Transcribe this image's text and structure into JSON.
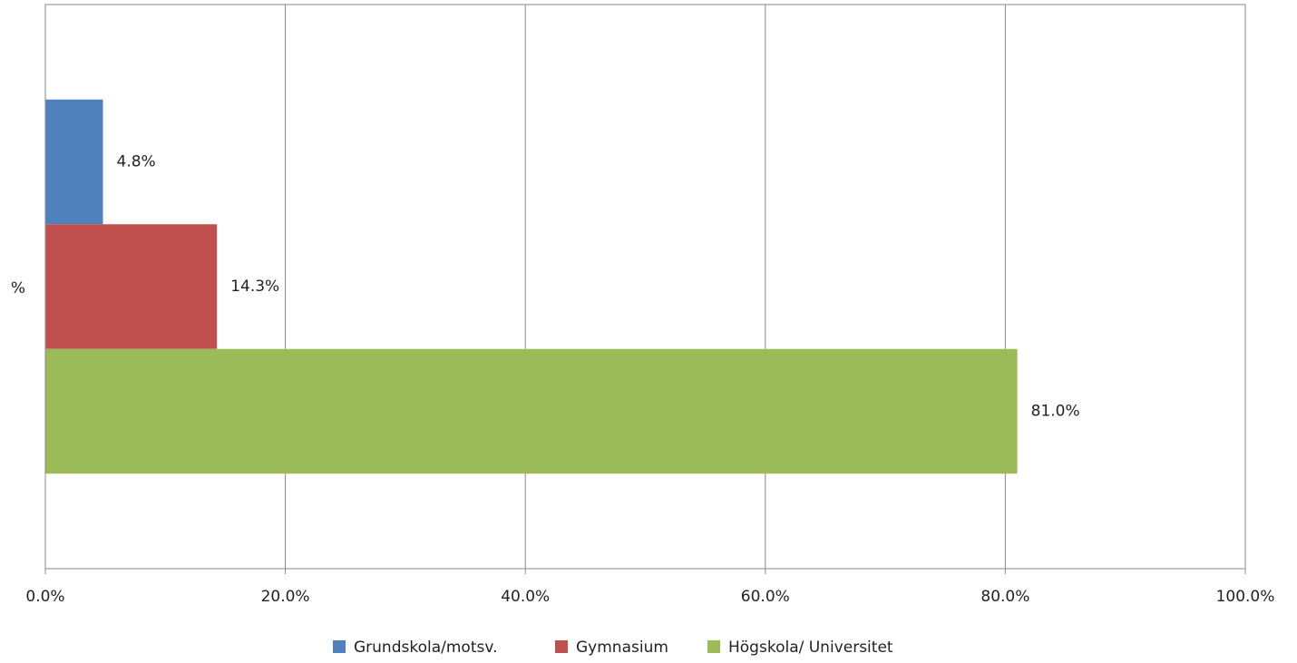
{
  "chart_data": {
    "type": "bar",
    "orientation": "horizontal",
    "categories": [
      "%"
    ],
    "series": [
      {
        "name": "Grundskola/motsv.",
        "color": "#4f81bd",
        "values": [
          4.8
        ],
        "value_labels": [
          "4.8%"
        ]
      },
      {
        "name": "Gymnasium",
        "color": "#c0504d",
        "values": [
          14.3
        ],
        "value_labels": [
          "14.3%"
        ]
      },
      {
        "name": "Högskola/ Universitet",
        "color": "#9bbb59",
        "values": [
          81.0
        ],
        "value_labels": [
          "81.0%"
        ]
      }
    ],
    "xlim": [
      0,
      100
    ],
    "xticks": [
      {
        "value": 0,
        "label": "0.0%"
      },
      {
        "value": 20,
        "label": "20.0%"
      },
      {
        "value": 40,
        "label": "40.0%"
      },
      {
        "value": 60,
        "label": "60.0%"
      },
      {
        "value": 80,
        "label": "80.0%"
      },
      {
        "value": 100,
        "label": "100.0%"
      }
    ],
    "grid": true,
    "legend": "bottom"
  }
}
